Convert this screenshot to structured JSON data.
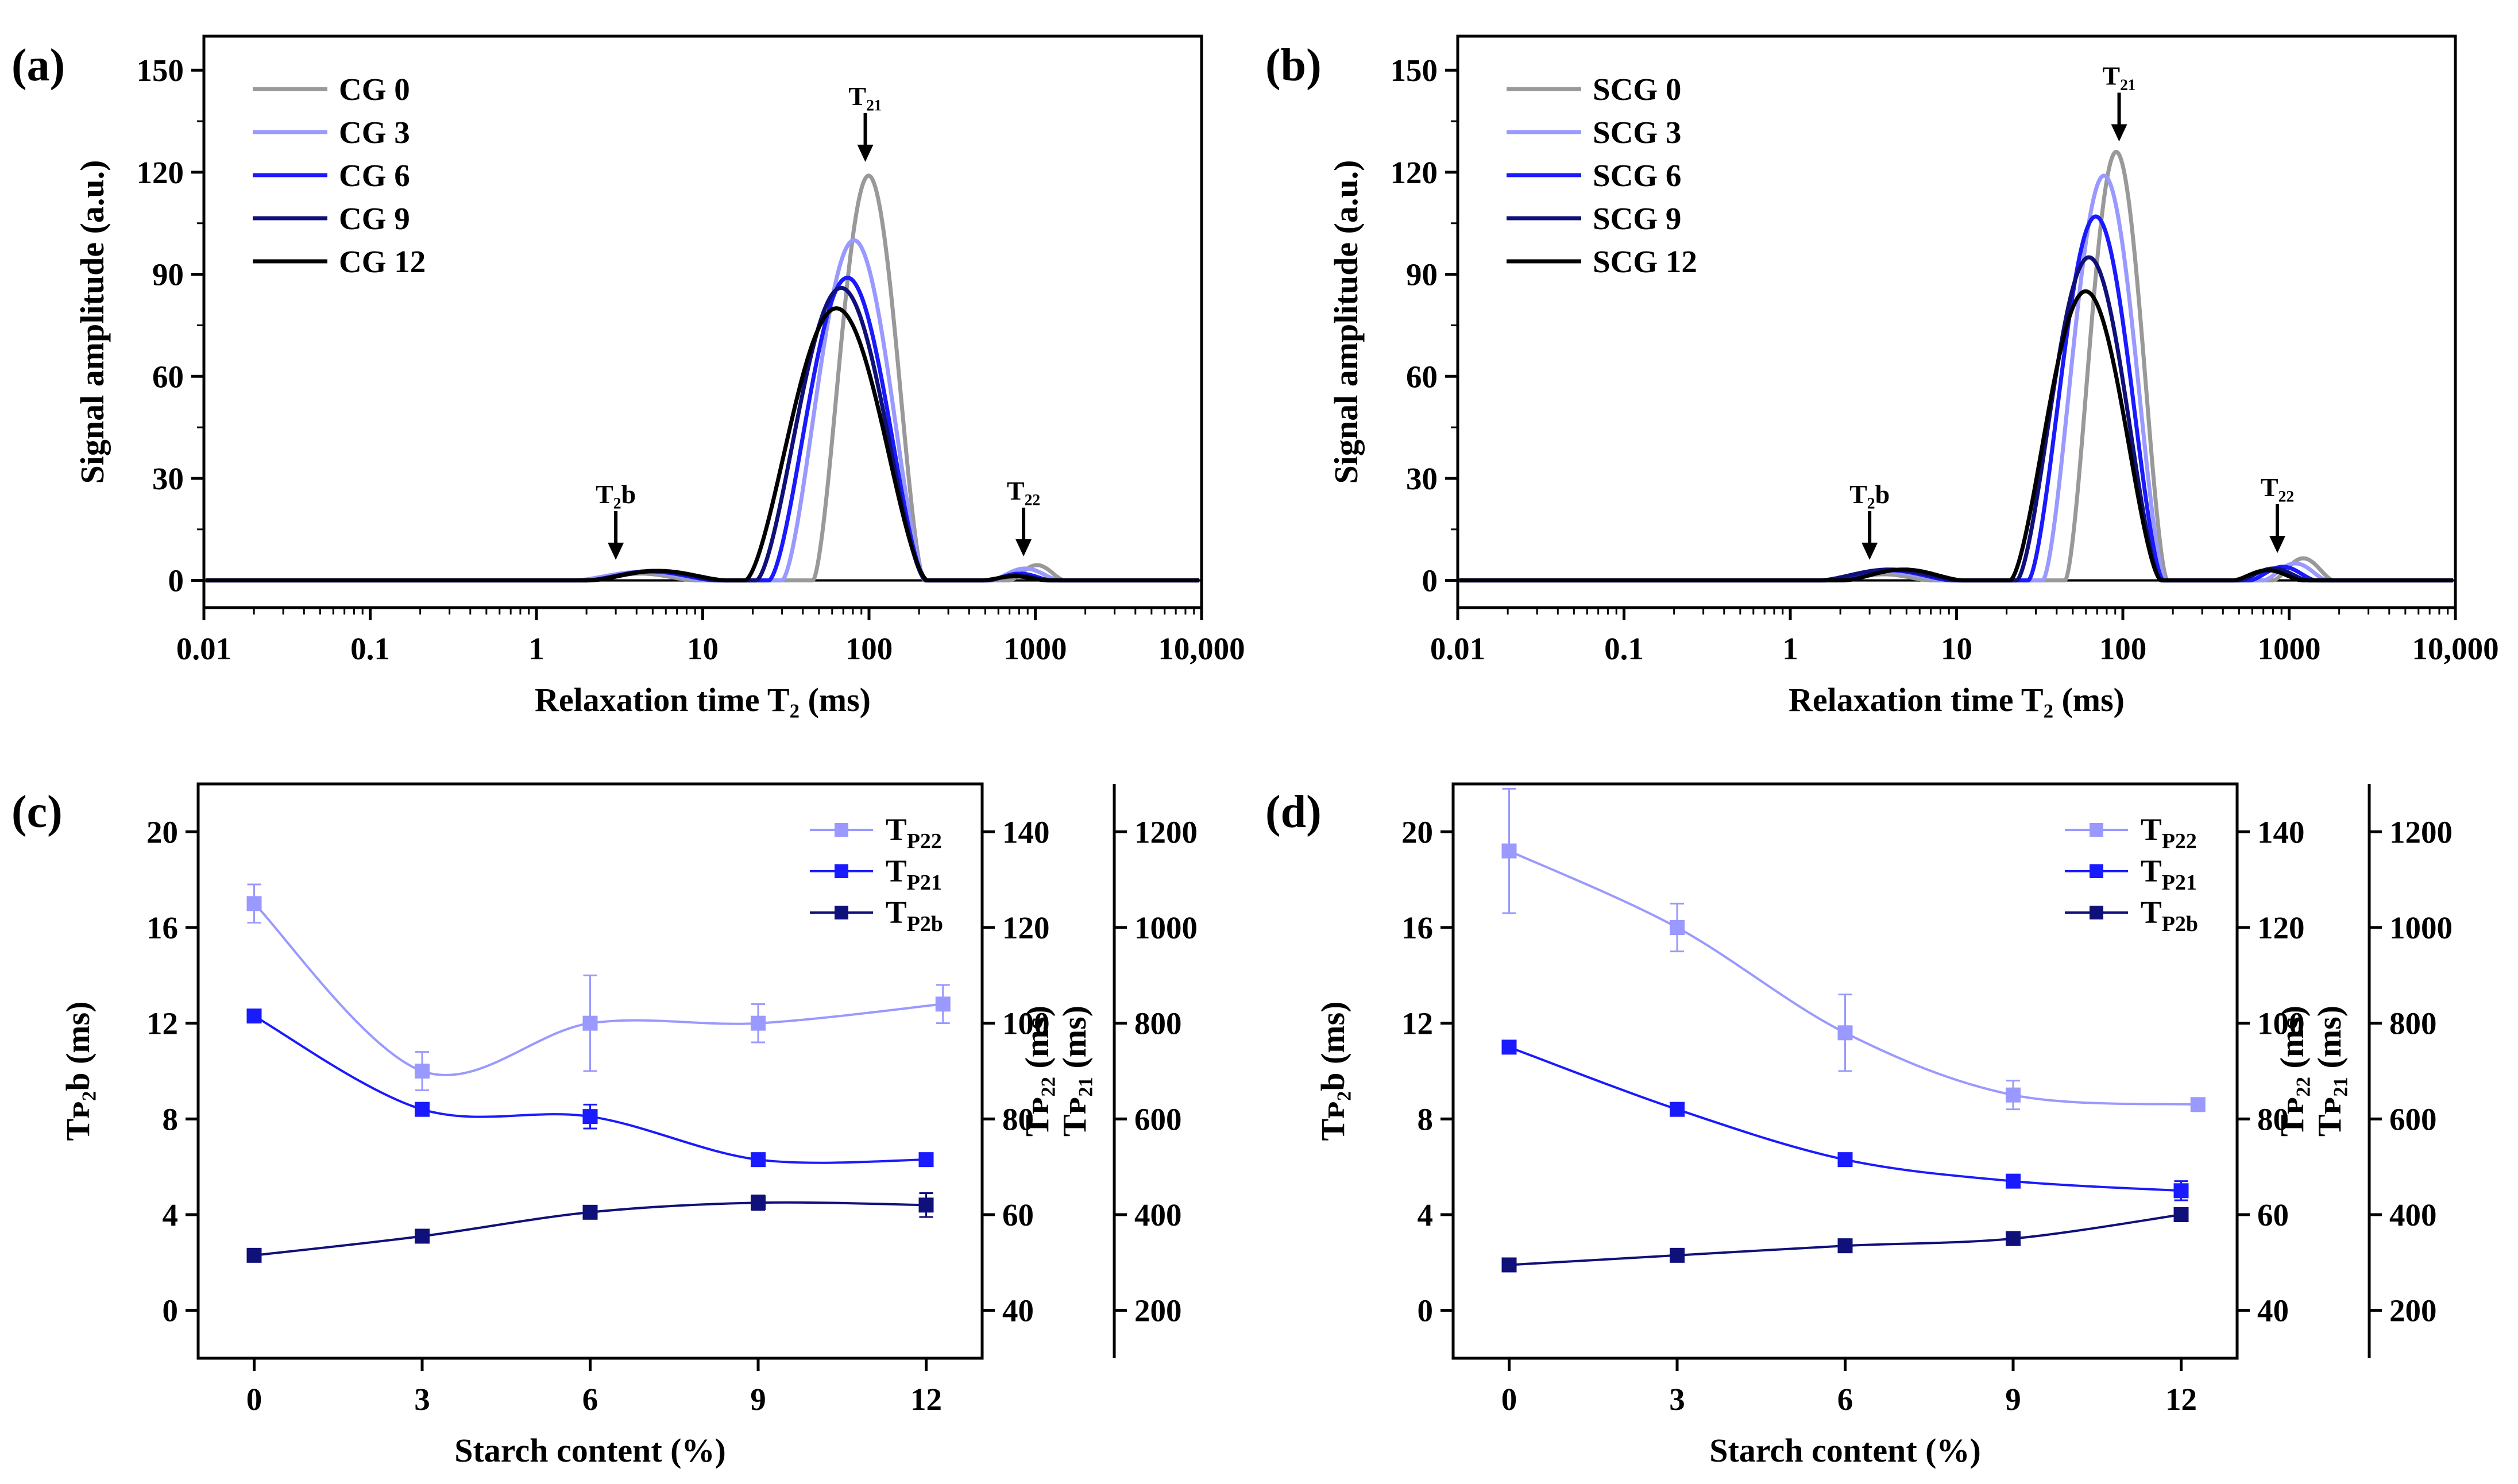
{
  "chart_data": [
    {
      "panel": "(a)",
      "type": "line",
      "xscale": "log",
      "xlim": [
        0.01,
        10000
      ],
      "ylim": [
        -8,
        160
      ],
      "xticks": [
        0.01,
        0.1,
        1,
        10,
        100,
        1000,
        10000
      ],
      "xtick_labels": [
        "0.01",
        "0.1",
        "1",
        "10",
        "100",
        "1000",
        "10,000"
      ],
      "yticks": [
        0,
        30,
        60,
        90,
        120,
        150
      ],
      "ytick_labels": [
        "0",
        "30",
        "60",
        "90",
        "120",
        "150"
      ],
      "xlabel": "Relaxation time T₂  (ms)",
      "ylabel": "Signal amplitude  (a.u.)",
      "legend_position": "top-left",
      "series": [
        {
          "name": "CG 0",
          "color": "#999999",
          "peaks": [
            {
              "lo": 2.0,
              "hi": 9.0,
              "amp": 2.0
            },
            {
              "lo": 46,
              "hi": 215,
              "amp": 119
            },
            {
              "lo": 700,
              "hi": 1500,
              "amp": 4.5
            }
          ]
        },
        {
          "name": "CG 3",
          "color": "#9999ff",
          "peaks": [
            {
              "lo": 1.7,
              "hi": 11,
              "amp": 2.5
            },
            {
              "lo": 30,
              "hi": 220,
              "amp": 100
            },
            {
              "lo": 540,
              "hi": 1400,
              "amp": 3.5
            }
          ]
        },
        {
          "name": "CG 6",
          "color": "#1a1aff",
          "peaks": [
            {
              "lo": 2.0,
              "hi": 12,
              "amp": 2.6
            },
            {
              "lo": 25,
              "hi": 220,
              "amp": 89
            },
            {
              "lo": 520,
              "hi": 1250,
              "amp": 2.0
            }
          ]
        },
        {
          "name": "CG 9",
          "color": "#10107a",
          "peaks": [
            {
              "lo": 2.0,
              "hi": 13,
              "amp": 2.8
            },
            {
              "lo": 21,
              "hi": 220,
              "amp": 86
            },
            {
              "lo": 500,
              "hi": 1200,
              "amp": 1.5
            }
          ]
        },
        {
          "name": "CG 12",
          "color": "#000000",
          "peaks": [
            {
              "lo": 2.1,
              "hi": 14,
              "amp": 2.8
            },
            {
              "lo": 18,
              "hi": 225,
              "amp": 80
            },
            {
              "lo": 480,
              "hi": 1180,
              "amp": 1.2
            }
          ]
        }
      ],
      "annotations": [
        {
          "text": "T₂₁",
          "x": 95,
          "y": 120
        },
        {
          "text": "T₂b",
          "x": 3,
          "y": 3
        },
        {
          "text": "T₂₂",
          "x": 850,
          "y": 4
        }
      ]
    },
    {
      "panel": "(b)",
      "type": "line",
      "xscale": "log",
      "xlim": [
        0.01,
        10000
      ],
      "ylim": [
        -8,
        160
      ],
      "xticks": [
        0.01,
        0.1,
        1,
        10,
        100,
        1000,
        10000
      ],
      "xtick_labels": [
        "0.01",
        "0.1",
        "1",
        "10",
        "100",
        "1000",
        "10,000"
      ],
      "yticks": [
        0,
        30,
        60,
        90,
        120,
        150
      ],
      "ytick_labels": [
        "0",
        "30",
        "60",
        "90",
        "120",
        "150"
      ],
      "xlabel": "Relaxation time T₂  (ms)",
      "ylabel": "Signal amplitude  (a.u.)",
      "legend_position": "top-left",
      "series": [
        {
          "name": "SCG 0",
          "color": "#999999",
          "peaks": [
            {
              "lo": 1.9,
              "hi": 7.0,
              "amp": 1.8
            },
            {
              "lo": 45,
              "hi": 185,
              "amp": 126
            },
            {
              "lo": 800,
              "hi": 1850,
              "amp": 6.5
            }
          ]
        },
        {
          "name": "SCG 3",
          "color": "#9999ff",
          "peaks": [
            {
              "lo": 1.6,
              "hi": 9.0,
              "amp": 2.5
            },
            {
              "lo": 33,
              "hi": 180,
              "amp": 119
            },
            {
              "lo": 700,
              "hi": 1700,
              "amp": 5.0
            }
          ]
        },
        {
          "name": "SCG 6",
          "color": "#1a1aff",
          "peaks": [
            {
              "lo": 1.6,
              "hi": 9.5,
              "amp": 3.0
            },
            {
              "lo": 27,
              "hi": 175,
              "amp": 107
            },
            {
              "lo": 580,
              "hi": 1450,
              "amp": 4.0
            }
          ]
        },
        {
          "name": "SCG 9",
          "color": "#10107a",
          "peaks": [
            {
              "lo": 1.5,
              "hi": 10.5,
              "amp": 3.2
            },
            {
              "lo": 23,
              "hi": 170,
              "amp": 95
            },
            {
              "lo": 500,
              "hi": 1300,
              "amp": 3.5
            }
          ]
        },
        {
          "name": "SCG 12",
          "color": "#000000",
          "peaks": [
            {
              "lo": 2.1,
              "hi": 11,
              "amp": 3.2
            },
            {
              "lo": 21,
              "hi": 170,
              "amp": 85
            },
            {
              "lo": 460,
              "hi": 1200,
              "amp": 3.0
            }
          ]
        }
      ],
      "annotations": [
        {
          "text": "T₂₁",
          "x": 95,
          "y": 126
        },
        {
          "text": "T₂b",
          "x": 3,
          "y": 3
        },
        {
          "text": "T₂₂",
          "x": 850,
          "y": 5
        }
      ]
    },
    {
      "panel": "(c)",
      "type": "line",
      "xlabel": "Starch content (%)",
      "x": [
        0,
        3,
        6,
        9,
        12
      ],
      "xtick_labels": [
        "0",
        "3",
        "6",
        "9",
        "12"
      ],
      "xlim": [
        -1,
        13
      ],
      "axes": [
        {
          "label": "Tᴘ₂b (ms)",
          "ylim": [
            -2,
            22
          ],
          "ticks": [
            0,
            4,
            8,
            12,
            16,
            20
          ],
          "tick_labels": [
            "0",
            "4",
            "8",
            "12",
            "16",
            "20"
          ]
        },
        {
          "label": "Tᴘ₂₁ (ms)",
          "ylim": [
            30,
            150
          ],
          "ticks": [
            40,
            60,
            80,
            100,
            120,
            140
          ],
          "tick_labels": [
            "40",
            "60",
            "80",
            "100",
            "120",
            "140"
          ]
        },
        {
          "label": "Tᴘ₂₂ (ms)",
          "ylim": [
            100,
            1300
          ],
          "ticks": [
            200,
            400,
            600,
            800,
            1000,
            1200
          ],
          "tick_labels": [
            "200",
            "400",
            "600",
            "800",
            "1000",
            "1200"
          ]
        }
      ],
      "series": [
        {
          "name": "T",
          "sub": "P22",
          "axis": 2,
          "color": "#9999ff",
          "values": [
            1050,
            700,
            800,
            800,
            840
          ],
          "errors": [
            40,
            40,
            100,
            40,
            40
          ],
          "x_offset": 0,
          "marker_x": [
            0,
            3,
            6,
            9,
            12.3
          ]
        },
        {
          "name": "T",
          "sub": "P21",
          "axis": 1,
          "color": "#1a1aff",
          "values": [
            101.5,
            82,
            80.5,
            71.5,
            71.5
          ],
          "errors": [
            0.5,
            0.5,
            2.5,
            0.5,
            0.5
          ],
          "marker_x": [
            0,
            3,
            6,
            9,
            12
          ]
        },
        {
          "name": "T",
          "sub": "P2b",
          "axis": 0,
          "color": "#10107a",
          "values": [
            2.3,
            3.1,
            4.1,
            4.5,
            4.4
          ],
          "errors": [
            0.1,
            0.1,
            0.1,
            0.3,
            0.5
          ],
          "marker_x": [
            0,
            3,
            6,
            9,
            12
          ]
        }
      ]
    },
    {
      "panel": "(d)",
      "type": "line",
      "xlabel": "Starch content (%)",
      "x": [
        0,
        3,
        6,
        9,
        12
      ],
      "xtick_labels": [
        "0",
        "3",
        "6",
        "9",
        "12"
      ],
      "xlim": [
        -1,
        13
      ],
      "axes": [
        {
          "label": "Tᴘ₂b (ms)",
          "ylim": [
            -2,
            22
          ],
          "ticks": [
            0,
            4,
            8,
            12,
            16,
            20
          ],
          "tick_labels": [
            "0",
            "4",
            "8",
            "12",
            "16",
            "20"
          ]
        },
        {
          "label": "Tᴘ₂₁ (ms)",
          "ylim": [
            30,
            150
          ],
          "ticks": [
            40,
            60,
            80,
            100,
            120,
            140
          ],
          "tick_labels": [
            "40",
            "60",
            "80",
            "100",
            "120",
            "140"
          ]
        },
        {
          "label": "Tᴘ₂₂ (ms)",
          "ylim": [
            100,
            1300
          ],
          "ticks": [
            200,
            400,
            600,
            800,
            1000,
            1200
          ],
          "tick_labels": [
            "200",
            "400",
            "600",
            "800",
            "1000",
            "1200"
          ]
        }
      ],
      "series": [
        {
          "name": "T",
          "sub": "P22",
          "axis": 2,
          "color": "#9999ff",
          "values": [
            1160,
            1000,
            780,
            650,
            630
          ],
          "errors": [
            130,
            50,
            80,
            30,
            10
          ],
          "marker_x": [
            0,
            3,
            6,
            9,
            12.3
          ]
        },
        {
          "name": "T",
          "sub": "P21",
          "axis": 1,
          "color": "#1a1aff",
          "values": [
            95,
            82,
            71.5,
            67,
            65
          ],
          "errors": [
            0.5,
            0.5,
            0.5,
            0.5,
            2
          ],
          "marker_x": [
            0,
            3,
            6,
            9,
            12
          ]
        },
        {
          "name": "T",
          "sub": "P2b",
          "axis": 0,
          "color": "#10107a",
          "values": [
            1.9,
            2.3,
            2.7,
            3.0,
            4.0
          ],
          "errors": [
            0.1,
            0.1,
            0.1,
            0.1,
            0.2
          ],
          "marker_x": [
            0,
            3,
            6,
            9,
            12
          ]
        }
      ]
    }
  ]
}
